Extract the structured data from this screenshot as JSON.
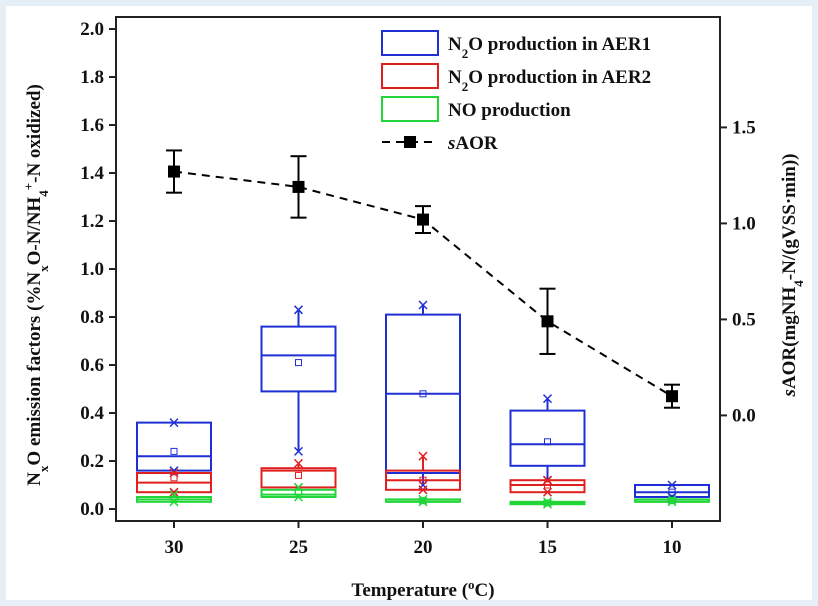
{
  "chart_data": {
    "type": "box",
    "xlabel": "Temperature (°C)",
    "ylabel_left": "NxO emission factors (%NxO-N/NH4+-N oxidized)",
    "ylabel_right": "sAOR(mgNH4-N/(gVSS·min))",
    "categories": [
      "30",
      "25",
      "20",
      "15",
      "10"
    ],
    "ylim_left": [
      -0.05,
      2.05
    ],
    "yticks_left": [
      0.0,
      0.2,
      0.4,
      0.6,
      0.8,
      1.0,
      1.2,
      1.4,
      1.6,
      1.8,
      2.0
    ],
    "ytick_labels_left": [
      "0.0",
      "0.2",
      "0.4",
      "0.6",
      "0.8",
      "1.0",
      "1.2",
      "1.4",
      "1.6",
      "1.8",
      "2.0"
    ],
    "yticks_right": [
      0.0,
      0.5,
      1.0,
      1.5
    ],
    "ytick_labels_right": [
      "0.0",
      "0.5",
      "1.0",
      "1.5"
    ],
    "right_axis_zero_on_left": 0.39,
    "right_axis_unit_on_left": 0.8,
    "legend": [
      {
        "label_pre": "N",
        "label_sub": "2",
        "label_post": "O production in AER1",
        "color": "#1f2fd6"
      },
      {
        "label_pre": "N",
        "label_sub": "2",
        "label_post": "O production in AER2",
        "color": "#e0201f"
      },
      {
        "label_pre": "",
        "label_sub": "",
        "label_post": "NO production",
        "color": "#22d63a"
      },
      {
        "label_pre": "",
        "label_sub": "",
        "label_post": "sAOR",
        "color": "#000000"
      }
    ],
    "legend_position": "top-right",
    "series": [
      {
        "name": "N2O production in AER1",
        "color": "#1f2fd6",
        "boxes": [
          {
            "q1": 0.16,
            "median": 0.22,
            "q3": 0.36,
            "mean": 0.24,
            "min": 0.16,
            "max": 0.36
          },
          {
            "q1": 0.49,
            "median": 0.64,
            "q3": 0.76,
            "mean": 0.61,
            "min": 0.24,
            "max": 0.83
          },
          {
            "q1": 0.15,
            "median": 0.48,
            "q3": 0.81,
            "mean": 0.48,
            "min": 0.1,
            "max": 0.85
          },
          {
            "q1": 0.18,
            "median": 0.27,
            "q3": 0.41,
            "mean": 0.28,
            "min": 0.12,
            "max": 0.46
          },
          {
            "q1": 0.05,
            "median": 0.07,
            "q3": 0.1,
            "mean": 0.07,
            "min": 0.05,
            "max": 0.1
          }
        ]
      },
      {
        "name": "N2O production in AER2",
        "color": "#e0201f",
        "boxes": [
          {
            "q1": 0.07,
            "median": 0.11,
            "q3": 0.15,
            "mean": 0.13,
            "min": 0.07,
            "max": 0.15
          },
          {
            "q1": 0.09,
            "median": 0.16,
            "q3": 0.17,
            "mean": 0.14,
            "min": 0.09,
            "max": 0.19
          },
          {
            "q1": 0.08,
            "median": 0.12,
            "q3": 0.16,
            "mean": 0.12,
            "min": 0.08,
            "max": 0.22
          },
          {
            "q1": 0.07,
            "median": 0.1,
            "q3": 0.12,
            "mean": 0.1,
            "min": 0.07,
            "max": 0.12
          },
          null
        ]
      },
      {
        "name": "NO production",
        "color": "#22d63a",
        "boxes": [
          {
            "q1": 0.03,
            "median": 0.04,
            "q3": 0.05,
            "mean": 0.04,
            "min": 0.03,
            "max": 0.06
          },
          {
            "q1": 0.05,
            "median": 0.06,
            "q3": 0.08,
            "mean": 0.07,
            "min": 0.05,
            "max": 0.09
          },
          {
            "q1": 0.03,
            "median": 0.03,
            "q3": 0.04,
            "mean": 0.035,
            "min": 0.03,
            "max": 0.04
          },
          {
            "q1": 0.02,
            "median": 0.025,
            "q3": 0.03,
            "mean": 0.025,
            "min": 0.02,
            "max": 0.03
          },
          {
            "q1": 0.03,
            "median": 0.03,
            "q3": 0.04,
            "mean": 0.035,
            "min": 0.03,
            "max": 0.04
          }
        ]
      }
    ],
    "sAOR": {
      "name": "sAOR",
      "color": "#000000",
      "values": [
        1.27,
        1.19,
        1.02,
        0.49,
        0.1
      ],
      "errors": [
        0.11,
        0.16,
        0.07,
        0.17,
        0.06
      ]
    }
  }
}
